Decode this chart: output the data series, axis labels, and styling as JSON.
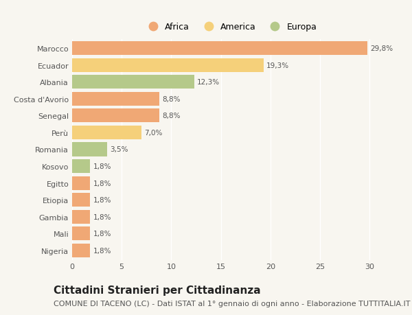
{
  "categories": [
    "Marocco",
    "Ecuador",
    "Albania",
    "Costa d'Avorio",
    "Senegal",
    "Perù",
    "Romania",
    "Kosovo",
    "Egitto",
    "Etiopia",
    "Gambia",
    "Mali",
    "Nigeria"
  ],
  "values": [
    29.8,
    19.3,
    12.3,
    8.8,
    8.8,
    7.0,
    3.5,
    1.8,
    1.8,
    1.8,
    1.8,
    1.8,
    1.8
  ],
  "labels": [
    "29,8%",
    "19,3%",
    "12,3%",
    "8,8%",
    "8,8%",
    "7,0%",
    "3,5%",
    "1,8%",
    "1,8%",
    "1,8%",
    "1,8%",
    "1,8%",
    "1,8%"
  ],
  "continents": [
    "Africa",
    "America",
    "Europa",
    "Africa",
    "Africa",
    "America",
    "Europa",
    "Europa",
    "Africa",
    "Africa",
    "Africa",
    "Africa",
    "Africa"
  ],
  "colors": {
    "Africa": "#F0A875",
    "America": "#F5D07A",
    "Europa": "#B5C98A"
  },
  "legend_labels": [
    "Africa",
    "America",
    "Europa"
  ],
  "xlim": [
    0,
    32
  ],
  "xticks": [
    0,
    5,
    10,
    15,
    20,
    25,
    30
  ],
  "title": "Cittadini Stranieri per Cittadinanza",
  "subtitle": "COMUNE DI TACENO (LC) - Dati ISTAT al 1° gennaio di ogni anno - Elaborazione TUTTITALIA.IT",
  "background_color": "#F8F6F0",
  "bar_height": 0.82,
  "title_fontsize": 11,
  "subtitle_fontsize": 8,
  "label_fontsize": 7.5,
  "tick_fontsize": 8,
  "legend_fontsize": 9
}
